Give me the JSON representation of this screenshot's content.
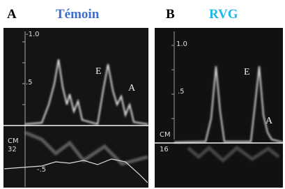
{
  "panels": [
    {
      "letter": "A",
      "title": "Témoin",
      "scale_top": "-1.0",
      "scale_mid": ".5",
      "scale_neg": "-.5",
      "depth_unit": "CM",
      "depth": "32",
      "peak_e": "E",
      "peak_a": "A"
    },
    {
      "letter": "B",
      "title": "RVG",
      "scale_top": "1.0",
      "scale_mid": ".5",
      "depth_unit": "CM",
      "depth": "16",
      "peak_e": "E",
      "peak_a": "A"
    }
  ]
}
